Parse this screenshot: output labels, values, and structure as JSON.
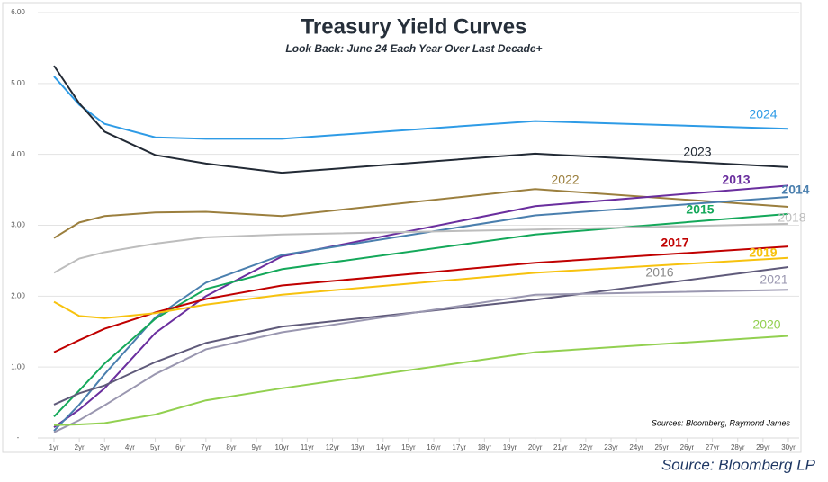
{
  "chart_data": {
    "type": "line",
    "title": "Treasury Yield Curves",
    "subtitle": "Look Back: June 24 Each Year Over Last Decade+",
    "annotations": [
      "Sources: Bloomberg, Raymond James"
    ],
    "source": "Source: Bloomberg LP",
    "x": [
      1,
      2,
      3,
      5,
      7,
      10,
      20,
      30
    ],
    "xlim": [
      1,
      30
    ],
    "xticks": [
      {
        "value": 1,
        "label": "1yr"
      },
      {
        "value": 2,
        "label": "2yr"
      },
      {
        "value": 3,
        "label": "3yr"
      },
      {
        "value": 4,
        "label": "4yr"
      },
      {
        "value": 5,
        "label": "5yr"
      },
      {
        "value": 6,
        "label": "6yr"
      },
      {
        "value": 7,
        "label": "7yr"
      },
      {
        "value": 8,
        "label": "8yr"
      },
      {
        "value": 9,
        "label": "9yr"
      },
      {
        "value": 10,
        "label": "10yr"
      },
      {
        "value": 11,
        "label": "11yr"
      },
      {
        "value": 12,
        "label": "12yr"
      },
      {
        "value": 13,
        "label": "13yr"
      },
      {
        "value": 14,
        "label": "14yr"
      },
      {
        "value": 15,
        "label": "15yr"
      },
      {
        "value": 16,
        "label": "16yr"
      },
      {
        "value": 17,
        "label": "17yr"
      },
      {
        "value": 18,
        "label": "18yr"
      },
      {
        "value": 19,
        "label": "19yr"
      },
      {
        "value": 20,
        "label": "20yr"
      },
      {
        "value": 21,
        "label": "21yr"
      },
      {
        "value": 22,
        "label": "22yr"
      },
      {
        "value": 23,
        "label": "23yr"
      },
      {
        "value": 24,
        "label": "24yr"
      },
      {
        "value": 25,
        "label": "25yr"
      },
      {
        "value": 26,
        "label": "26yr"
      },
      {
        "value": 27,
        "label": "27yr"
      },
      {
        "value": 28,
        "label": "28yr"
      },
      {
        "value": 29,
        "label": "29yr"
      },
      {
        "value": 30,
        "label": "30yr"
      }
    ],
    "ylim": [
      0,
      6
    ],
    "yticks": [
      {
        "value": 0,
        "label": "-"
      },
      {
        "value": 1,
        "label": "1.00"
      },
      {
        "value": 2,
        "label": "2.00"
      },
      {
        "value": 3,
        "label": "3.00"
      },
      {
        "value": 4,
        "label": "4.00"
      },
      {
        "value": 5,
        "label": "5.00"
      },
      {
        "value": 6,
        "label": "6.00"
      }
    ],
    "grid": true,
    "series": [
      {
        "name": "2024",
        "color": "#2e9be6",
        "values": [
          5.1,
          4.7,
          4.43,
          4.24,
          4.22,
          4.22,
          4.47,
          4.36
        ]
      },
      {
        "name": "2023",
        "color": "#222a35",
        "values": [
          5.25,
          4.72,
          4.32,
          3.99,
          3.87,
          3.74,
          4.01,
          3.82
        ]
      },
      {
        "name": "2022",
        "color": "#9b7f3e",
        "values": [
          2.82,
          3.04,
          3.13,
          3.18,
          3.19,
          3.13,
          3.51,
          3.26
        ]
      },
      {
        "name": "2013",
        "color": "#6a2e9e",
        "values": [
          0.15,
          0.4,
          0.7,
          1.48,
          2.0,
          2.56,
          3.27,
          3.56
        ]
      },
      {
        "name": "2014",
        "color": "#4a7fae",
        "values": [
          0.1,
          0.47,
          0.9,
          1.7,
          2.19,
          2.58,
          3.14,
          3.4
        ]
      },
      {
        "name": "2015",
        "color": "#14a85a",
        "values": [
          0.3,
          0.67,
          1.05,
          1.68,
          2.1,
          2.38,
          2.87,
          3.16
        ]
      },
      {
        "name": "2018",
        "color": "#bdbdbd",
        "values": [
          2.33,
          2.53,
          2.62,
          2.74,
          2.83,
          2.87,
          2.94,
          3.02
        ]
      },
      {
        "name": "2017",
        "color": "#c00000",
        "values": [
          1.21,
          1.38,
          1.54,
          1.77,
          1.96,
          2.15,
          2.47,
          2.7
        ]
      },
      {
        "name": "2019",
        "color": "#f7c20e",
        "values": [
          1.92,
          1.72,
          1.69,
          1.76,
          1.88,
          2.02,
          2.33,
          2.54
        ]
      },
      {
        "name": "2016",
        "color": "#5f5a7a",
        "values": [
          0.47,
          0.63,
          0.74,
          1.07,
          1.34,
          1.57,
          1.95,
          2.41
        ]
      },
      {
        "name": "2021",
        "color": "#9a97b0",
        "values": [
          0.08,
          0.25,
          0.46,
          0.9,
          1.25,
          1.49,
          2.02,
          2.09
        ]
      },
      {
        "name": "2020",
        "color": "#92d050",
        "values": [
          0.18,
          0.19,
          0.21,
          0.33,
          0.53,
          0.7,
          1.21,
          1.44
        ]
      }
    ]
  }
}
